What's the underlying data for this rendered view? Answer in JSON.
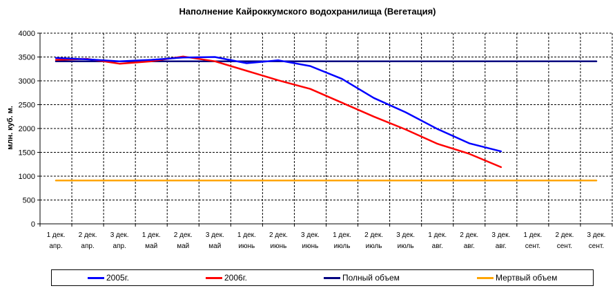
{
  "chart_data": {
    "type": "line",
    "title": "Наполнение Кайроккумского водохранилища (Вегетация)",
    "ylabel": "млн. куб. м.",
    "xlabel": "",
    "ylim": [
      0,
      4000
    ],
    "yticks": [
      0,
      500,
      1000,
      1500,
      2000,
      2500,
      3000,
      3500,
      4000
    ],
    "grid": true,
    "legend_position": "bottom",
    "categories": [
      [
        "1 дек.",
        "апр."
      ],
      [
        "2 дек.",
        "апр."
      ],
      [
        "3 дек.",
        "апр."
      ],
      [
        "1 дек.",
        "май"
      ],
      [
        "2 дек.",
        "май"
      ],
      [
        "3 дек.",
        "май"
      ],
      [
        "1 дек.",
        "июнь"
      ],
      [
        "2 дек.",
        "июнь"
      ],
      [
        "3 дек.",
        "июнь"
      ],
      [
        "1 дек.",
        "июль"
      ],
      [
        "2 дек.",
        "июль"
      ],
      [
        "3 дек.",
        "июль"
      ],
      [
        "1 дек.",
        "авг."
      ],
      [
        "2 дек.",
        "авг."
      ],
      [
        "3 дек.",
        "авг."
      ],
      [
        "1 дек.",
        "сент."
      ],
      [
        "2 дек.",
        "сент."
      ],
      [
        "3 дек.",
        "сент."
      ]
    ],
    "series": [
      {
        "name": "2005г.",
        "color": "#0000ff",
        "values": [
          3480,
          3450,
          3410,
          3440,
          3490,
          3500,
          3370,
          3430,
          3310,
          3040,
          2640,
          2340,
          1990,
          1690,
          1520,
          null,
          null,
          null
        ]
      },
      {
        "name": "2006г.",
        "color": "#ff0000",
        "values": [
          3440,
          3460,
          3360,
          3410,
          3510,
          3410,
          3210,
          3010,
          2830,
          2540,
          2250,
          1980,
          1680,
          1470,
          1190,
          null,
          null,
          null
        ]
      },
      {
        "name": "Полный объем",
        "color": "#000080",
        "values": [
          3410,
          3410,
          3410,
          3410,
          3410,
          3410,
          3410,
          3410,
          3410,
          3410,
          3410,
          3410,
          3410,
          3410,
          3410,
          3410,
          3410,
          3410
        ]
      },
      {
        "name": "Мертвый объем",
        "color": "#ffa500",
        "values": [
          910,
          910,
          910,
          910,
          910,
          910,
          910,
          910,
          910,
          910,
          910,
          910,
          910,
          910,
          910,
          910,
          910,
          910
        ]
      }
    ]
  }
}
